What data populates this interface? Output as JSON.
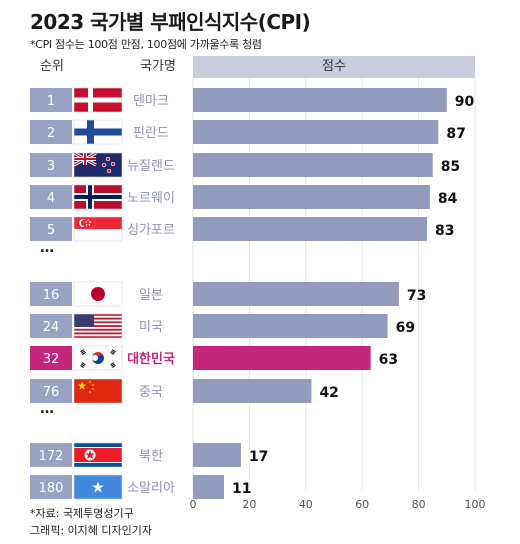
{
  "title": "2023 국가별 부패인식지수(CPI)",
  "subtitle": "*CPI 점수는 100점 만점, 100점에 가까울수록 청렴",
  "headers": {
    "rank": "순위",
    "country": "국가명",
    "score": "점수"
  },
  "ellipsis": "…",
  "footer": {
    "source": "*자료: 국제투명성기구",
    "credit": "그래픽: 이지혜 디자인기자"
  },
  "colors": {
    "bar": "#939bbe",
    "highlight": "#c4267c",
    "rank_box": "#9aa2c4",
    "country_text": "#8d93b5",
    "country_highlight": "#c4267c"
  },
  "chart_data": {
    "type": "bar",
    "orientation": "horizontal",
    "xlim": [
      0,
      100
    ],
    "xticks": [
      "0",
      "20",
      "40",
      "60",
      "80",
      "100"
    ],
    "rows": [
      {
        "rank": "1",
        "country": "덴마크",
        "flag": "denmark-flag",
        "value": 90
      },
      {
        "rank": "2",
        "country": "핀란드",
        "flag": "finland-flag",
        "value": 87
      },
      {
        "rank": "3",
        "country": "뉴질랜드",
        "flag": "new-zealand-flag",
        "value": 85
      },
      {
        "rank": "4",
        "country": "노르웨이",
        "flag": "norway-flag",
        "value": 84
      },
      {
        "rank": "5",
        "country": "싱가포르",
        "flag": "singapore-flag",
        "value": 83
      },
      {
        "rank": "16",
        "country": "일본",
        "flag": "japan-flag",
        "value": 73
      },
      {
        "rank": "24",
        "country": "미국",
        "flag": "usa-flag",
        "value": 69
      },
      {
        "rank": "32",
        "country": "대한민국",
        "flag": "korea-flag",
        "value": 63,
        "highlight": true
      },
      {
        "rank": "76",
        "country": "중국",
        "flag": "china-flag",
        "value": 42
      },
      {
        "rank": "172",
        "country": "북한",
        "flag": "north-korea-flag",
        "value": 17
      },
      {
        "rank": "180",
        "country": "소말리아",
        "flag": "somalia-flag",
        "value": 11
      }
    ]
  }
}
